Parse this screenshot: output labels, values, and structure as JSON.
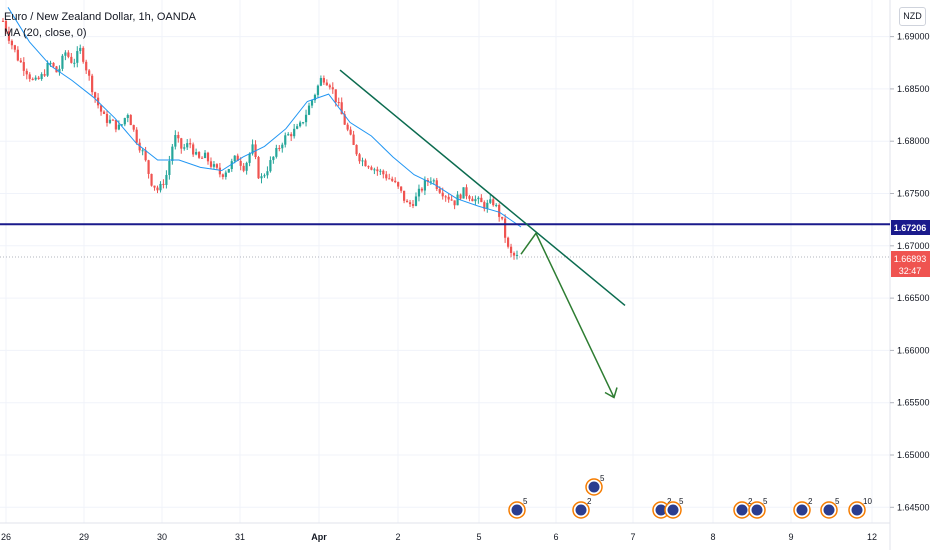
{
  "header": {
    "title": "Euro / New Zealand Dollar, 1h, OANDA",
    "indicator": "MA (20, close, 0)"
  },
  "currency_badge": "NZD",
  "price_tags": {
    "support_level": "1.67206",
    "last_price": "1.66893",
    "countdown": "32:47"
  },
  "colors": {
    "up": "#26a69a",
    "down": "#ef5350",
    "ma": "#2196f3",
    "support": "#1a1a8c",
    "trend": "#0b6b4f",
    "projection": "#2e7d32"
  },
  "chart_data": {
    "type": "candlestick",
    "title": "Euro / New Zealand Dollar, 1h, OANDA",
    "ylim": [
      1.6435,
      1.6935
    ],
    "x_tick_labels": [
      "26",
      "29",
      "30",
      "31",
      "Apr",
      "2",
      "5",
      "6",
      "7",
      "8",
      "9",
      "12"
    ],
    "y_tick_labels": [
      "1.69000",
      "1.68500",
      "1.68000",
      "1.67500",
      "1.67000",
      "1.66500",
      "1.66000",
      "1.65500",
      "1.65000",
      "1.64500"
    ],
    "y_tick_values": [
      1.69,
      1.685,
      1.68,
      1.675,
      1.67,
      1.665,
      1.66,
      1.655,
      1.65,
      1.645
    ],
    "support_level": 1.67206,
    "last_price": 1.66893,
    "ohlc_path": [
      1.6915,
      1.6895,
      1.6878,
      1.6868,
      1.6855,
      1.6862,
      1.6875,
      1.6865,
      1.6885,
      1.6875,
      1.6888,
      1.6862,
      1.6838,
      1.6822,
      1.6818,
      1.6812,
      1.6828,
      1.6805,
      1.6788,
      1.6762,
      1.6752,
      1.6768,
      1.6805,
      1.6792,
      1.6798,
      1.6782,
      1.6785,
      1.6775,
      1.6768,
      1.6775,
      1.6785,
      1.6775,
      1.6795,
      1.6762,
      1.6775,
      1.6788,
      1.6802,
      1.6808,
      1.6812,
      1.6828,
      1.6845,
      1.6862,
      1.6855,
      1.6835,
      1.6815,
      1.6795,
      1.6782,
      1.6778,
      1.6772,
      1.6768,
      1.6762,
      1.6752,
      1.6738,
      1.6745,
      1.6758,
      1.6765,
      1.6755,
      1.6748,
      1.6742,
      1.6752,
      1.6748,
      1.6742,
      1.6738,
      1.6742,
      1.6725,
      1.6692,
      1.6689
    ],
    "ma_path": [
      1.6928,
      1.6895,
      1.6872,
      1.6858,
      1.6842,
      1.6822,
      1.6798,
      1.6782,
      1.6782,
      1.6775,
      1.6772,
      1.6785,
      1.6795,
      1.6812,
      1.6838,
      1.6845,
      1.6818,
      1.6805,
      1.6785,
      1.6768,
      1.6758,
      1.6745,
      1.6738,
      1.6732,
      1.6718
    ],
    "trendline": [
      {
        "x": "Apr",
        "y": 1.6868
      },
      {
        "x": "6",
        "y": 1.6643
      }
    ],
    "projection": [
      {
        "x": "5",
        "y": 1.6692
      },
      {
        "x": "6",
        "y": 1.6712
      },
      {
        "x": "7",
        "y": 1.6555
      }
    ],
    "event_markers": [
      {
        "x": "5",
        "count": "5"
      },
      {
        "x": "6",
        "count": "2"
      },
      {
        "x": "6",
        "count": "5"
      },
      {
        "x": "7",
        "count": "2"
      },
      {
        "x": "7",
        "count": "5"
      },
      {
        "x": "8",
        "count": "2"
      },
      {
        "x": "8",
        "count": "5"
      },
      {
        "x": "9",
        "count": "2"
      },
      {
        "x": "9",
        "count": "5"
      },
      {
        "x": "12",
        "count": "10"
      }
    ]
  }
}
